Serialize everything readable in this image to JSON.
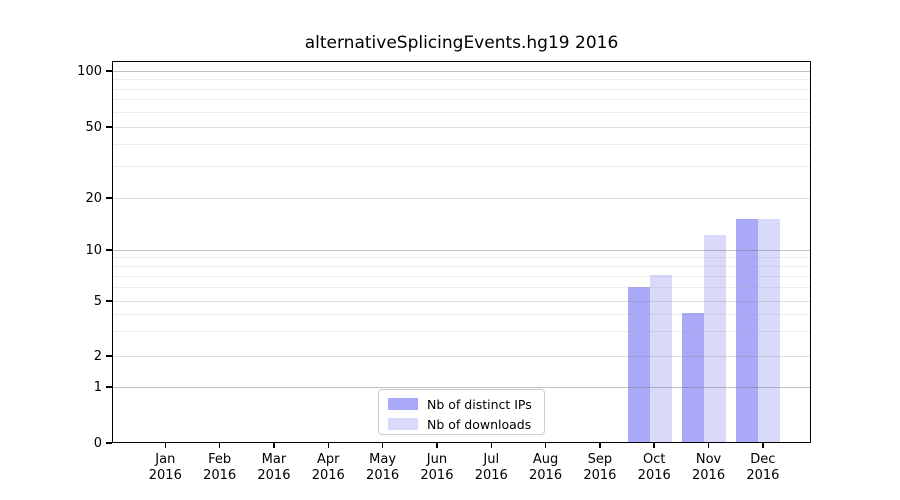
{
  "title": "alternativeSplicingEvents.hg19 2016",
  "chart_data": {
    "type": "bar",
    "title": "alternativeSplicingEvents.hg19 2016",
    "categories": [
      "Jan 2016",
      "Feb 2016",
      "Mar 2016",
      "Apr 2016",
      "May 2016",
      "Jun 2016",
      "Jul 2016",
      "Aug 2016",
      "Sep 2016",
      "Oct 2016",
      "Nov 2016",
      "Dec 2016"
    ],
    "series": [
      {
        "name": "Nb of distinct IPs",
        "color": "#a9a9f8",
        "values": [
          0,
          0,
          0,
          0,
          0,
          0,
          0,
          0,
          0,
          6,
          4,
          15
        ]
      },
      {
        "name": "Nb of downloads",
        "color": "#d9d9fa",
        "values": [
          0,
          0,
          0,
          0,
          0,
          0,
          0,
          0,
          0,
          7,
          12,
          15
        ]
      }
    ],
    "xlabel": "",
    "ylabel": "",
    "yscale": "log (with 0 baseline)",
    "yticks": [
      0,
      1,
      2,
      5,
      10,
      20,
      50,
      100
    ],
    "ylim": [
      0,
      113
    ],
    "grid": "on (horizontal major + minor log gridlines)",
    "legend_position": "lower center inside plot",
    "decade_gridlines": [
      1,
      10,
      100
    ],
    "labeled_sub_gridlines": [
      2,
      5,
      20,
      50
    ],
    "minor_gridlines": [
      3,
      4,
      6,
      7,
      8,
      9,
      30,
      40,
      60,
      70,
      80,
      90
    ],
    "bar_color_dark": "#a9a9f8",
    "bar_color_light": "#d9d9fa",
    "grid_color": "#c9c9c9",
    "axis_color": "#000000"
  }
}
